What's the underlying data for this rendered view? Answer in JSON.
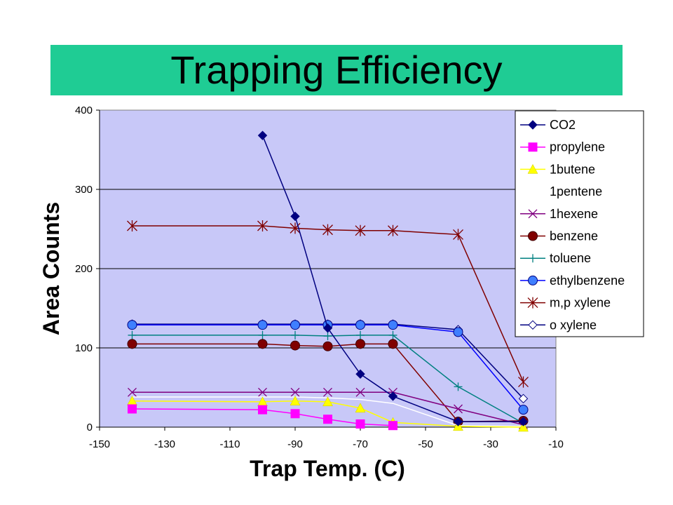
{
  "slide": {
    "title": "Trapping Efficiency",
    "title_bg": "#1fcc94"
  },
  "chart_data": {
    "type": "line",
    "xlabel": "Trap Temp. (C)",
    "ylabel": "Area Counts",
    "xlim": [
      -150,
      -10
    ],
    "ylim": [
      0,
      400
    ],
    "xticks": [
      -150,
      -130,
      -110,
      -90,
      -70,
      -50,
      -30,
      -10
    ],
    "yticks": [
      0,
      100,
      200,
      300,
      400
    ],
    "grid": "horizontal",
    "plot_bg": "#c8c8f8",
    "legend_position": "top-right",
    "series": [
      {
        "name": "CO2",
        "color": "#000080",
        "marker": "diamond-filled",
        "x": [
          -100,
          -90,
          -80,
          -70,
          -60,
          -40,
          -20
        ],
        "y": [
          368,
          266,
          125,
          67,
          39,
          7,
          7
        ]
      },
      {
        "name": "propylene",
        "color": "#ff00ff",
        "marker": "square",
        "x": [
          -140,
          -100,
          -90,
          -80,
          -70,
          -60
        ],
        "y": [
          23,
          22,
          17,
          10,
          4,
          2
        ]
      },
      {
        "name": "1butene",
        "color": "#ffff00",
        "marker": "triangle",
        "x": [
          -140,
          -100,
          -90,
          -80,
          -70,
          -60,
          -40,
          -20
        ],
        "y": [
          33,
          32,
          33,
          32,
          24,
          6,
          1,
          0
        ]
      },
      {
        "name": "1pentene",
        "color": "#ffffff",
        "marker": "none",
        "x": [
          -140,
          -100,
          -90,
          -80,
          -70,
          -60,
          -40,
          -20
        ],
        "y": [
          38,
          38,
          38,
          37,
          35,
          30,
          2,
          1
        ]
      },
      {
        "name": "1hexene",
        "color": "#800080",
        "marker": "x",
        "x": [
          -140,
          -100,
          -90,
          -80,
          -70,
          -60,
          -40,
          -20
        ],
        "y": [
          44,
          44,
          44,
          44,
          44,
          44,
          23,
          3
        ]
      },
      {
        "name": "benzene",
        "color": "#800000",
        "marker": "circle",
        "x": [
          -140,
          -100,
          -90,
          -80,
          -70,
          -60,
          -40,
          -20
        ],
        "y": [
          105,
          105,
          103,
          102,
          105,
          105,
          7,
          8
        ]
      },
      {
        "name": "toluene",
        "color": "#008080",
        "marker": "plus",
        "x": [
          -140,
          -100,
          -90,
          -80,
          -70,
          -60,
          -40,
          -20
        ],
        "y": [
          116,
          116,
          116,
          115,
          116,
          116,
          51,
          5
        ]
      },
      {
        "name": "ethylbenzene",
        "color": "#0000ff",
        "marker": "circle-blue",
        "x": [
          -140,
          -100,
          -90,
          -80,
          -70,
          -60,
          -40,
          -20
        ],
        "y": [
          129,
          129,
          129,
          129,
          129,
          129,
          120,
          22
        ]
      },
      {
        "name": "m,p xylene",
        "color": "#800000",
        "marker": "asterisk",
        "x": [
          -140,
          -100,
          -90,
          -80,
          -70,
          -60,
          -40,
          -20
        ],
        "y": [
          254,
          254,
          251,
          249,
          248,
          248,
          243,
          57
        ]
      },
      {
        "name": "o xylene",
        "color": "#000080",
        "marker": "diamond-open",
        "x": [
          -140,
          -100,
          -90,
          -80,
          -70,
          -60,
          -40,
          -20
        ],
        "y": [
          130,
          130,
          130,
          130,
          130,
          130,
          123,
          36
        ]
      }
    ]
  }
}
